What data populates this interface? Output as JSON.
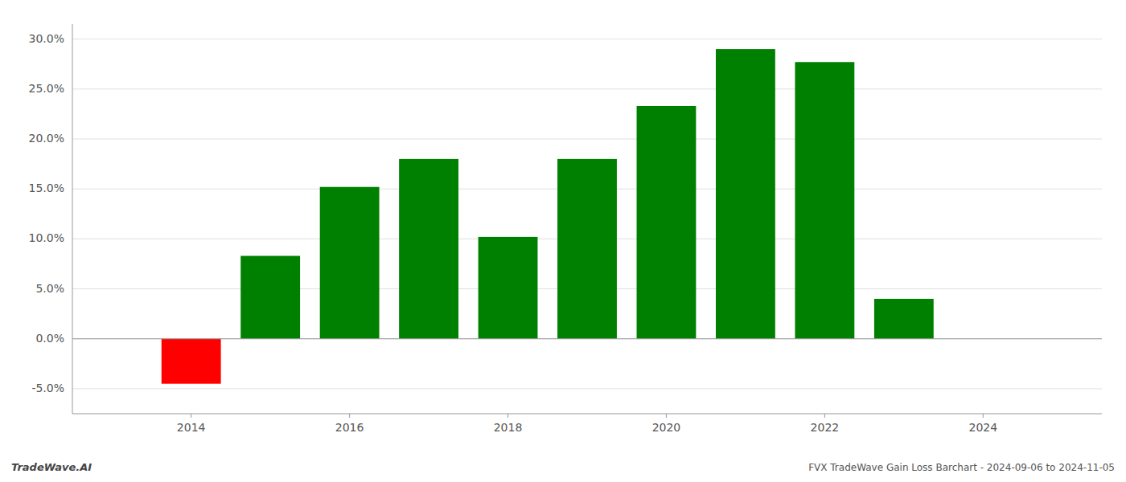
{
  "chart_data": {
    "type": "bar",
    "title": "FVX TradeWave Gain Loss Barchart - 2024-09-06 to 2024-11-05",
    "annotations": [
      "TradeWave.AI"
    ],
    "x": [
      2014,
      2015,
      2016,
      2017,
      2018,
      2019,
      2020,
      2021,
      2022,
      2023
    ],
    "values": [
      -0.045,
      0.083,
      0.152,
      0.18,
      0.102,
      0.18,
      0.233,
      0.29,
      0.277,
      0.04
    ],
    "colors": [
      "#ff0000",
      "#008000",
      "#008000",
      "#008000",
      "#008000",
      "#008000",
      "#008000",
      "#008000",
      "#008000",
      "#008000"
    ],
    "xlim": [
      2012.5,
      2025.5
    ],
    "xticks": [
      2014,
      2016,
      2018,
      2020,
      2022,
      2024
    ],
    "ylim": [
      -0.075,
      0.315
    ],
    "yticks": [
      {
        "value": -0.05,
        "label": "-5.0%"
      },
      {
        "value": 0.0,
        "label": "0.0%"
      },
      {
        "value": 0.05,
        "label": "5.0%"
      },
      {
        "value": 0.1,
        "label": "10.0%"
      },
      {
        "value": 0.15,
        "label": "15.0%"
      },
      {
        "value": 0.2,
        "label": "20.0%"
      },
      {
        "value": 0.25,
        "label": "25.0%"
      },
      {
        "value": 0.3,
        "label": "30.0%"
      }
    ],
    "grid": true
  }
}
